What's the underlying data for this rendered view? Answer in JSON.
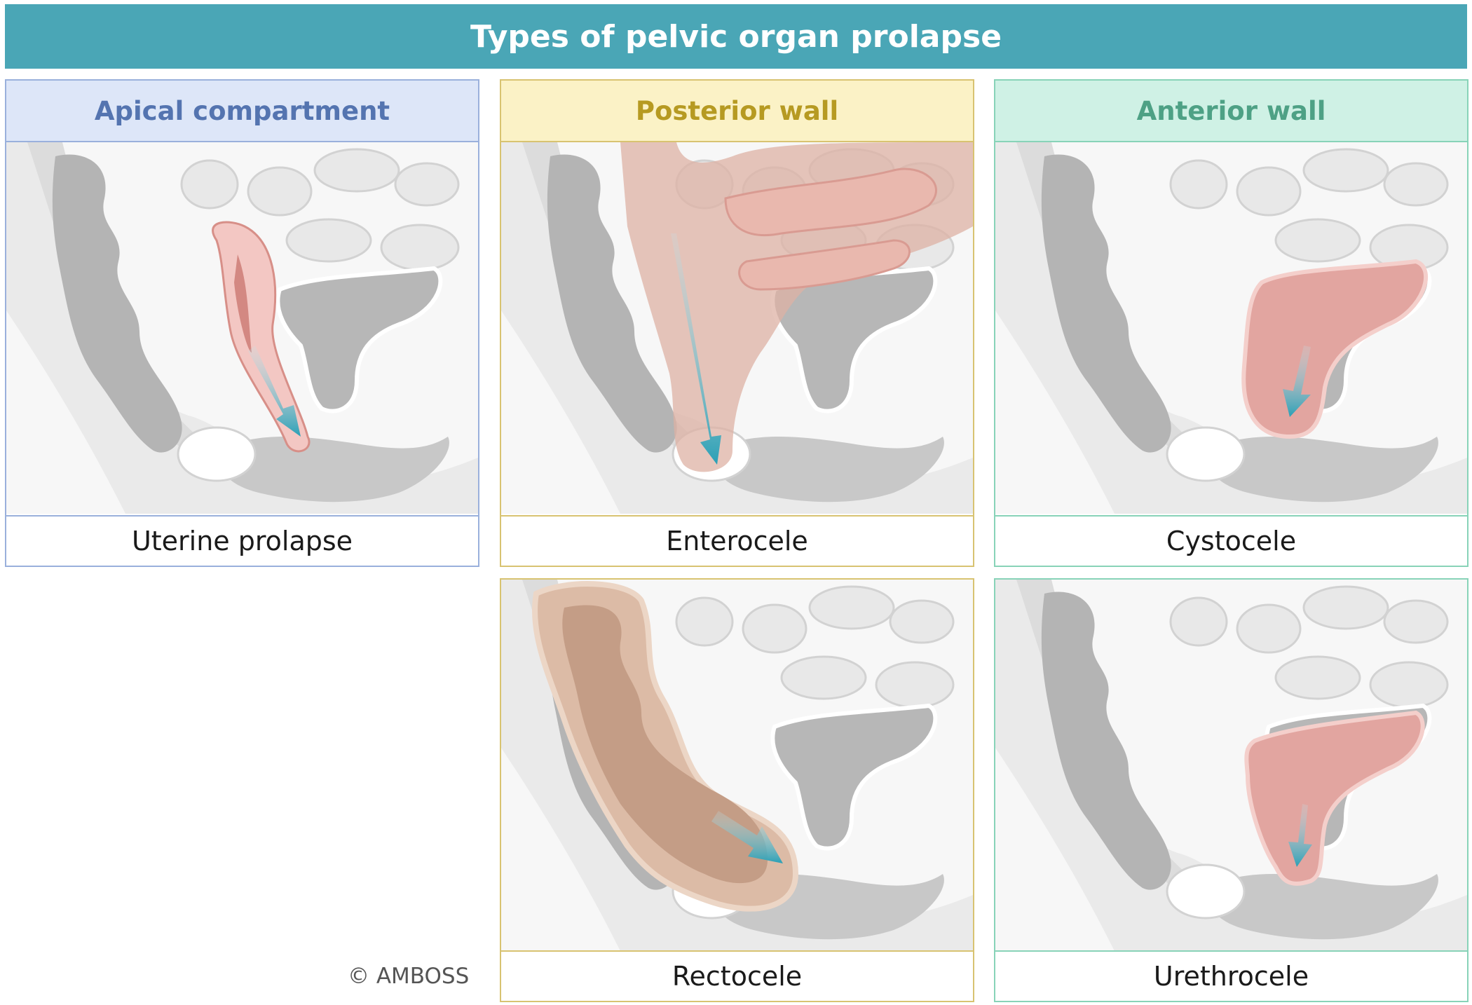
{
  "title": "Types of pelvic organ prolapse",
  "columns": {
    "apical": {
      "label": "Apical compartment",
      "color": "#5474b0"
    },
    "posterior": {
      "label": "Posterior wall",
      "color": "#b69a22"
    },
    "anterior": {
      "label": "Anterior wall",
      "color": "#4ea185"
    }
  },
  "panels": {
    "uterine": {
      "caption": "Uterine prolapse"
    },
    "enterocele": {
      "caption": "Enterocele"
    },
    "cystocele": {
      "caption": "Cystocele"
    },
    "rectocele": {
      "caption": "Rectocele"
    },
    "urethrocele": {
      "caption": "Urethrocele"
    }
  },
  "copyright": "© AMBOSS",
  "colors": {
    "banner": "#4aa6b6",
    "arrow": "#2fa3b8",
    "organ_highlight": "#e2a5a0",
    "rectum_highlight": "#c99d82"
  }
}
